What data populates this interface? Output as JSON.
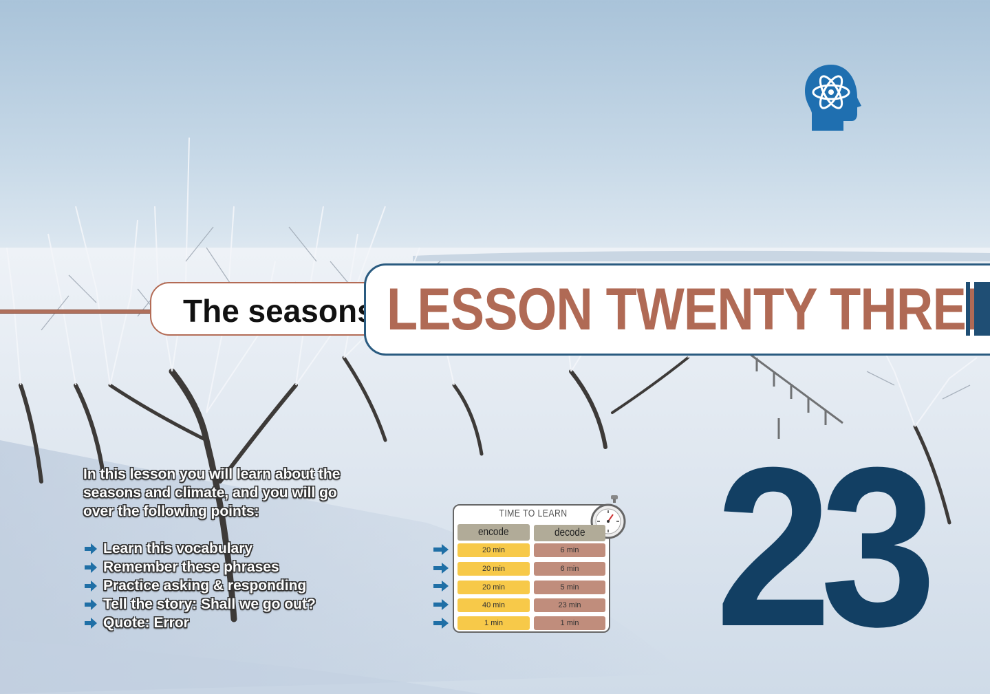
{
  "header": {
    "subtitle": "The seasons",
    "title": "LESSON TWENTY THREE"
  },
  "lesson_number": "23",
  "intro": {
    "lines": [
      "In this lesson you will learn about the",
      "seasons and climate, and you will go",
      "over the following points:"
    ],
    "points": [
      "Learn this vocabulary",
      "Remember these phrases",
      "Practice asking & responding",
      "Tell the story: Shall we go out?",
      "Quote: Error"
    ]
  },
  "time_to_learn": {
    "title": "TIME TO LEARN",
    "headers": [
      "encode",
      "decode"
    ],
    "rows": [
      {
        "encode": "20 min",
        "decode": "6 min"
      },
      {
        "encode": "20 min",
        "decode": "6 min"
      },
      {
        "encode": "20 min",
        "decode": "5 min"
      },
      {
        "encode": "40 min",
        "decode": "23 min"
      },
      {
        "encode": "1 min",
        "decode": "1 min"
      }
    ]
  },
  "icons": {
    "logo": "head-atom-logo-icon",
    "bullet": "arrow-right-icon",
    "timer": "stopwatch-icon"
  },
  "colors": {
    "accent_blue": "#123f63",
    "title_brown": "#b06a55",
    "encode_yellow": "#f7c949",
    "decode_brown": "#c08d7c",
    "arrow_blue": "#1f6fa6"
  }
}
